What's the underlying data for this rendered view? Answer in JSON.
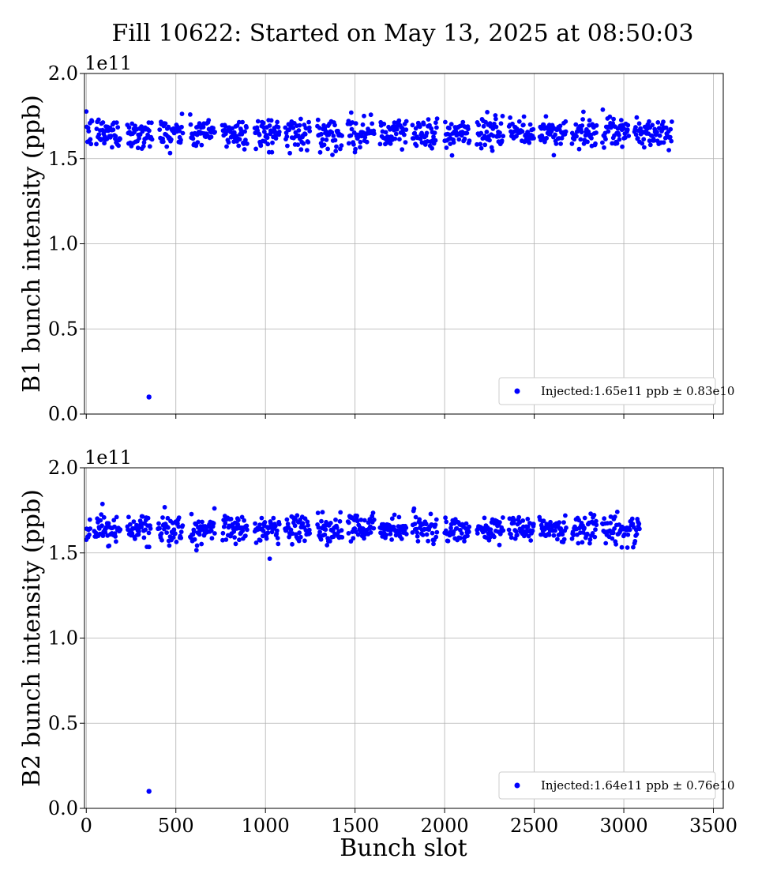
{
  "figure": {
    "title": "Fill 10622: Started on May 13, 2025 at 08:50:03",
    "xlabel": "Bunch slot"
  },
  "chart_data": [
    {
      "type": "scatter",
      "ylabel": "B1 bunch intensity (ppb)",
      "offset_text": "1e11",
      "xlim": [
        -10,
        3555
      ],
      "ylim": [
        0.0,
        2.0
      ],
      "x_ticks": [
        "0",
        "500",
        "1000",
        "1500",
        "2000",
        "2500",
        "3000",
        "3500"
      ],
      "x_tick_values": [
        0,
        500,
        1000,
        1500,
        2000,
        2500,
        3000,
        3500
      ],
      "y_ticks": [
        "0.0",
        "0.5",
        "1.0",
        "1.5",
        "2.0"
      ],
      "y_tick_values": [
        0.0,
        0.5,
        1.0,
        1.5,
        2.0
      ],
      "x_ticklabels_visible": false,
      "grid": true,
      "legend_placement": "lower-right",
      "series_label": "Injected:1.65e11 ppb ± 0.83e10",
      "color": "#0000ff",
      "mean": 1.65,
      "std": 0.083,
      "min": 1.44,
      "max": 1.87,
      "slot_range": [
        0,
        3270
      ],
      "train_groups": [
        [
          0,
          35
        ],
        [
          55,
          190
        ],
        [
          230,
          370
        ],
        [
          410,
          540
        ],
        [
          580,
          720
        ],
        [
          760,
          900
        ],
        [
          940,
          1080
        ],
        [
          1110,
          1250
        ],
        [
          1290,
          1430
        ],
        [
          1460,
          1610
        ],
        [
          1640,
          1790
        ],
        [
          1820,
          1960
        ],
        [
          2000,
          2140
        ],
        [
          2180,
          2330
        ],
        [
          2360,
          2500
        ],
        [
          2530,
          2680
        ],
        [
          2710,
          2850
        ],
        [
          2880,
          3030
        ],
        [
          3060,
          3270
        ]
      ],
      "outliers": [
        {
          "x": 350,
          "y": 0.1
        }
      ]
    },
    {
      "type": "scatter",
      "ylabel": "B2 bunch intensity (ppb)",
      "offset_text": "1e11",
      "xlim": [
        -10,
        3555
      ],
      "ylim": [
        0.0,
        2.0
      ],
      "x_ticks": [
        "0",
        "500",
        "1000",
        "1500",
        "2000",
        "2500",
        "3000",
        "3500"
      ],
      "x_tick_values": [
        0,
        500,
        1000,
        1500,
        2000,
        2500,
        3000,
        3500
      ],
      "y_ticks": [
        "0.0",
        "0.5",
        "1.0",
        "1.5",
        "2.0"
      ],
      "y_tick_values": [
        0.0,
        0.5,
        1.0,
        1.5,
        2.0
      ],
      "x_ticklabels_visible": true,
      "grid": true,
      "legend_placement": "lower-right",
      "series_label": "Injected:1.64e11 ppb ± 0.76e10",
      "color": "#0000ff",
      "mean": 1.64,
      "std": 0.076,
      "min": 1.43,
      "max": 1.87,
      "slot_range": [
        0,
        3090
      ],
      "train_groups": [
        [
          0,
          25
        ],
        [
          45,
          190
        ],
        [
          230,
          360
        ],
        [
          400,
          540
        ],
        [
          580,
          720
        ],
        [
          760,
          900
        ],
        [
          940,
          1080
        ],
        [
          1110,
          1250
        ],
        [
          1290,
          1430
        ],
        [
          1460,
          1610
        ],
        [
          1640,
          1790
        ],
        [
          1820,
          1960
        ],
        [
          2000,
          2140
        ],
        [
          2180,
          2330
        ],
        [
          2360,
          2500
        ],
        [
          2530,
          2680
        ],
        [
          2710,
          2850
        ],
        [
          2880,
          3090
        ]
      ],
      "outliers": [
        {
          "x": 350,
          "y": 0.1
        }
      ]
    }
  ]
}
